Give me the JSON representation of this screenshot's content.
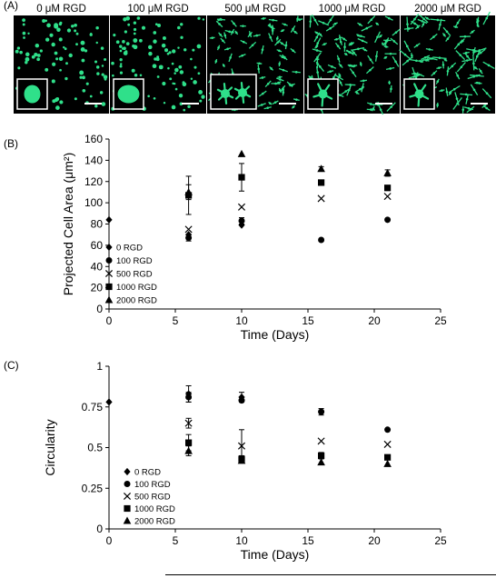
{
  "panelA": {
    "letter": "(A)",
    "labels": [
      "0 μM RGD",
      "100 μM RGD",
      "500 μM RGD",
      "1000 μM RGD",
      "2000 μM RGD"
    ],
    "colors": {
      "cell": "#2fe08a",
      "background": "#000000",
      "scale_bar": "#ffffff"
    }
  },
  "chart_data": [
    {
      "type": "scatter",
      "panel": "(B)",
      "ylabel": "Projected Cell Area (μm²)",
      "xlabel": "Time (Days)",
      "xlim": [
        0,
        25
      ],
      "ylim": [
        0,
        160
      ],
      "xticks": [
        0,
        5,
        10,
        15,
        20,
        25
      ],
      "yticks": [
        0,
        20,
        40,
        60,
        80,
        100,
        120,
        140,
        160
      ],
      "legend_position": "bottom-left",
      "series": [
        {
          "name": "0 RGD",
          "marker": "diamond",
          "points": [
            {
              "x": 0,
              "y": 84
            }
          ]
        },
        {
          "name": "100 RGD",
          "marker": "circle",
          "points": [
            {
              "x": 6,
              "y": 67,
              "err": 3
            },
            {
              "x": 10,
              "y": 83,
              "err": 3
            },
            {
              "x": 16,
              "y": 65
            },
            {
              "x": 21,
              "y": 84
            }
          ]
        },
        {
          "name": "500 RGD",
          "marker": "x",
          "points": [
            {
              "x": 6,
              "y": 75
            },
            {
              "x": 10,
              "y": 96
            },
            {
              "x": 16,
              "y": 104
            },
            {
              "x": 21,
              "y": 106
            }
          ]
        },
        {
          "name": "1000 RGD",
          "marker": "square",
          "points": [
            {
              "x": 6,
              "y": 107,
              "err": 18
            },
            {
              "x": 10,
              "y": 124,
              "err": 13
            },
            {
              "x": 16,
              "y": 119
            },
            {
              "x": 21,
              "y": 114
            }
          ]
        },
        {
          "name": "2000 RGD",
          "marker": "triangle",
          "points": [
            {
              "x": 6,
              "y": 110,
              "err": 7
            },
            {
              "x": 10,
              "y": 146
            },
            {
              "x": 16,
              "y": 132,
              "err": 2
            },
            {
              "x": 21,
              "y": 128,
              "err": 3
            }
          ]
        }
      ],
      "extra_points": [
        {
          "series": "0 RGD",
          "x": 6,
          "y": 70
        },
        {
          "series": "0 RGD",
          "x": 10,
          "y": 79
        }
      ]
    },
    {
      "type": "scatter",
      "panel": "(C)",
      "ylabel": "Circularity",
      "xlabel": "Time (Days)",
      "xlim": [
        0,
        25
      ],
      "ylim": [
        0,
        1
      ],
      "xticks": [
        0,
        5,
        10,
        15,
        20,
        25
      ],
      "yticks": [
        0,
        0.25,
        0.5,
        0.75,
        1
      ],
      "ytick_labels": [
        "0",
        "0.25",
        "0.5",
        "0.75",
        "1"
      ],
      "legend_position": "bottom-left",
      "series": [
        {
          "name": "0 RGD",
          "marker": "diamond",
          "points": [
            {
              "x": 0,
              "y": 0.78
            },
            {
              "x": 6,
              "y": 0.83,
              "err": 0.05
            },
            {
              "x": 10,
              "y": 0.81,
              "err": 0.03
            }
          ]
        },
        {
          "name": "100 RGD",
          "marker": "circle",
          "points": [
            {
              "x": 6,
              "y": 0.81,
              "err": 0.03
            },
            {
              "x": 10,
              "y": 0.79
            },
            {
              "x": 16,
              "y": 0.72,
              "err": 0.02
            },
            {
              "x": 21,
              "y": 0.61
            }
          ]
        },
        {
          "name": "500 RGD",
          "marker": "x",
          "points": [
            {
              "x": 6,
              "y": 0.65,
              "err": 0.03
            },
            {
              "x": 10,
              "y": 0.51,
              "err": 0.1
            },
            {
              "x": 16,
              "y": 0.54
            },
            {
              "x": 21,
              "y": 0.52
            }
          ]
        },
        {
          "name": "1000 RGD",
          "marker": "square",
          "points": [
            {
              "x": 6,
              "y": 0.53,
              "err": 0.05
            },
            {
              "x": 10,
              "y": 0.43,
              "err": 0.02
            },
            {
              "x": 16,
              "y": 0.45,
              "err": 0.02
            },
            {
              "x": 21,
              "y": 0.44
            }
          ]
        },
        {
          "name": "2000 RGD",
          "marker": "triangle",
          "points": [
            {
              "x": 6,
              "y": 0.48,
              "err": 0.03
            },
            {
              "x": 10,
              "y": 0.42
            },
            {
              "x": 16,
              "y": 0.41
            },
            {
              "x": 21,
              "y": 0.4
            }
          ]
        }
      ]
    }
  ]
}
